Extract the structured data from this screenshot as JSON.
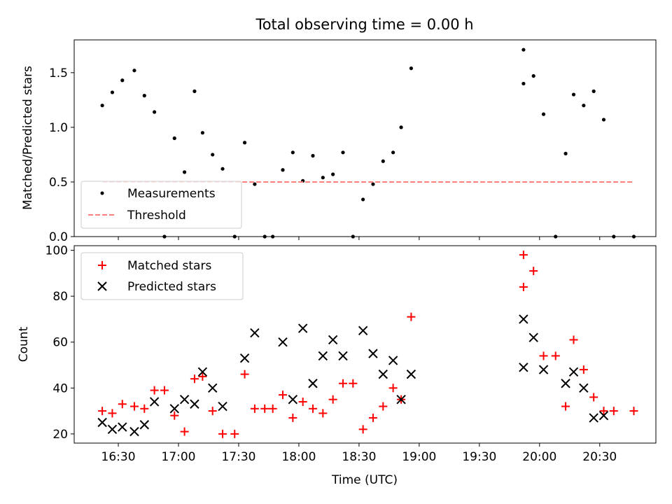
{
  "chart_data": [
    {
      "type": "scatter",
      "title": "Total observing time = 0.00 h",
      "ylabel": "Matched/Predicted stars",
      "xlabel": "",
      "ylim": [
        0,
        1.8
      ],
      "xlim": [
        "16:08",
        "20:58"
      ],
      "y_ticks": [
        "0.0",
        "0.5",
        "1.0",
        "1.5"
      ],
      "legend_position": "lower-left",
      "series": [
        {
          "name": "Measurements",
          "marker": "dot",
          "color": "#000000",
          "points": [
            [
              "16:22",
              1.2
            ],
            [
              "16:27",
              1.32
            ],
            [
              "16:32",
              1.43
            ],
            [
              "16:38",
              1.52
            ],
            [
              "16:43",
              1.29
            ],
            [
              "16:48",
              1.14
            ],
            [
              "16:53",
              0.0
            ],
            [
              "16:58",
              0.9
            ],
            [
              "17:03",
              0.59
            ],
            [
              "17:08",
              1.33
            ],
            [
              "17:12",
              0.95
            ],
            [
              "17:17",
              0.75
            ],
            [
              "17:22",
              0.62
            ],
            [
              "17:28",
              0.0
            ],
            [
              "17:33",
              0.86
            ],
            [
              "17:38",
              0.48
            ],
            [
              "17:43",
              0.0
            ],
            [
              "17:47",
              0.0
            ],
            [
              "17:52",
              0.61
            ],
            [
              "17:57",
              0.77
            ],
            [
              "18:02",
              0.51
            ],
            [
              "18:07",
              0.74
            ],
            [
              "18:12",
              0.54
            ],
            [
              "18:17",
              0.57
            ],
            [
              "18:22",
              0.77
            ],
            [
              "18:27",
              0.0
            ],
            [
              "18:32",
              0.34
            ],
            [
              "18:37",
              0.48
            ],
            [
              "18:42",
              0.69
            ],
            [
              "18:47",
              0.77
            ],
            [
              "18:51",
              1.0
            ],
            [
              "18:56",
              1.54
            ],
            [
              "19:52",
              1.4
            ],
            [
              "19:52",
              1.71
            ],
            [
              "19:57",
              1.47
            ],
            [
              "20:02",
              1.12
            ],
            [
              "20:08",
              0.0
            ],
            [
              "20:13",
              0.76
            ],
            [
              "20:17",
              1.3
            ],
            [
              "20:22",
              1.2
            ],
            [
              "20:27",
              1.33
            ],
            [
              "20:32",
              1.07
            ],
            [
              "20:37",
              0.0
            ],
            [
              "20:47",
              0.0
            ]
          ]
        },
        {
          "name": "Threshold",
          "marker": "dashed-line",
          "color": "#ff7f7f",
          "points": [
            [
              "16:22",
              0.5
            ],
            [
              "20:47",
              0.5
            ]
          ]
        }
      ]
    },
    {
      "type": "scatter",
      "title": "",
      "ylabel": "Count",
      "xlabel": "Time (UTC)",
      "ylim": [
        16,
        102
      ],
      "xlim": [
        "16:08",
        "20:58"
      ],
      "y_ticks": [
        "20",
        "40",
        "60",
        "80",
        "100"
      ],
      "x_ticks": [
        "16:30",
        "17:00",
        "17:30",
        "18:00",
        "18:30",
        "19:00",
        "19:30",
        "20:00",
        "20:30"
      ],
      "legend_position": "upper-left",
      "series": [
        {
          "name": "Matched stars",
          "marker": "plus",
          "color": "#ff0000",
          "points": [
            [
              "16:22",
              30
            ],
            [
              "16:27",
              29
            ],
            [
              "16:32",
              33
            ],
            [
              "16:38",
              32
            ],
            [
              "16:43",
              31
            ],
            [
              "16:48",
              39
            ],
            [
              "16:53",
              39
            ],
            [
              "16:58",
              28
            ],
            [
              "17:03",
              21
            ],
            [
              "17:08",
              44
            ],
            [
              "17:12",
              45
            ],
            [
              "17:17",
              30
            ],
            [
              "17:22",
              20
            ],
            [
              "17:28",
              20
            ],
            [
              "17:33",
              46
            ],
            [
              "17:38",
              31
            ],
            [
              "17:43",
              31
            ],
            [
              "17:47",
              31
            ],
            [
              "17:52",
              37
            ],
            [
              "17:57",
              27
            ],
            [
              "18:02",
              34
            ],
            [
              "18:07",
              31
            ],
            [
              "18:12",
              29
            ],
            [
              "18:17",
              35
            ],
            [
              "18:22",
              42
            ],
            [
              "18:27",
              42
            ],
            [
              "18:32",
              22
            ],
            [
              "18:37",
              27
            ],
            [
              "18:42",
              32
            ],
            [
              "18:47",
              40
            ],
            [
              "18:51",
              35
            ],
            [
              "18:56",
              71
            ],
            [
              "19:52",
              84
            ],
            [
              "19:52",
              98
            ],
            [
              "19:57",
              91
            ],
            [
              "20:02",
              54
            ],
            [
              "20:08",
              54
            ],
            [
              "20:13",
              32
            ],
            [
              "20:17",
              61
            ],
            [
              "20:22",
              48
            ],
            [
              "20:27",
              36
            ],
            [
              "20:32",
              30
            ],
            [
              "20:37",
              30
            ],
            [
              "20:47",
              30
            ]
          ]
        },
        {
          "name": "Predicted stars",
          "marker": "x",
          "color": "#000000",
          "points": [
            [
              "16:22",
              25
            ],
            [
              "16:27",
              22
            ],
            [
              "16:32",
              23
            ],
            [
              "16:38",
              21
            ],
            [
              "16:43",
              24
            ],
            [
              "16:48",
              34
            ],
            [
              "16:58",
              31
            ],
            [
              "17:03",
              35
            ],
            [
              "17:08",
              33
            ],
            [
              "17:12",
              47
            ],
            [
              "17:17",
              40
            ],
            [
              "17:22",
              32
            ],
            [
              "17:33",
              53
            ],
            [
              "17:38",
              64
            ],
            [
              "17:52",
              60
            ],
            [
              "17:57",
              35
            ],
            [
              "18:02",
              66
            ],
            [
              "18:07",
              42
            ],
            [
              "18:12",
              54
            ],
            [
              "18:17",
              61
            ],
            [
              "18:22",
              54
            ],
            [
              "18:32",
              65
            ],
            [
              "18:37",
              55
            ],
            [
              "18:42",
              46
            ],
            [
              "18:47",
              52
            ],
            [
              "18:51",
              35
            ],
            [
              "18:56",
              46
            ],
            [
              "19:52",
              70
            ],
            [
              "19:52",
              49
            ],
            [
              "19:57",
              62
            ],
            [
              "20:02",
              48
            ],
            [
              "20:13",
              42
            ],
            [
              "20:17",
              47
            ],
            [
              "20:22",
              40
            ],
            [
              "20:27",
              27
            ],
            [
              "20:32",
              28
            ]
          ]
        }
      ]
    }
  ]
}
